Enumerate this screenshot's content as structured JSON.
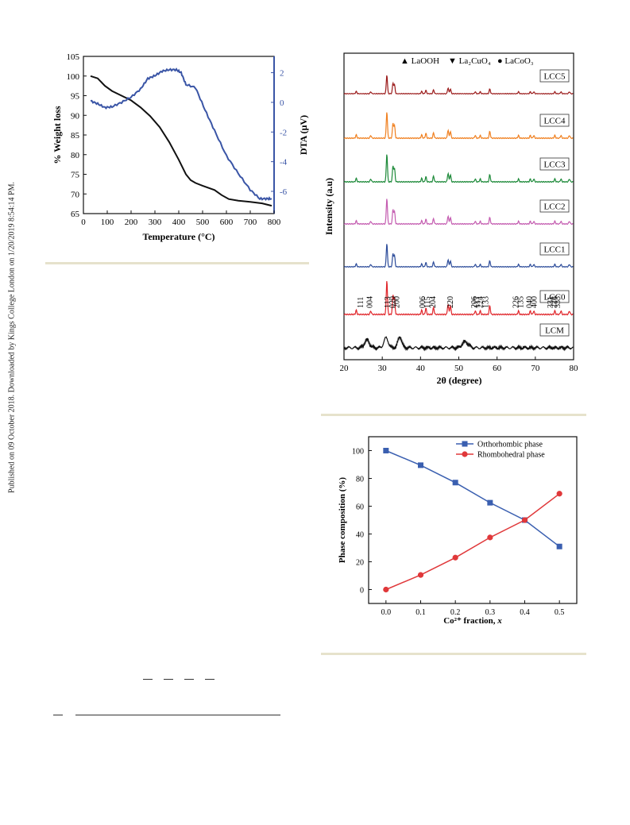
{
  "sidebar": "Published on 09 October 2018. Downloaded by Kings College London on 1/20/2019 8:54:14 PM.",
  "colors": {
    "weight_loss": "#111111",
    "dta": "#3a55a6",
    "LCC5": "#9b1b1b",
    "LCC4": "#f08020",
    "LCC3": "#1e8a3a",
    "LCC2": "#c45cb0",
    "LCC1": "#2c4c9a",
    "LCC0": "#e0252a",
    "LCM": "#111111",
    "orthorhombic": "#3a5fb0",
    "rhombohedral": "#e0383a",
    "rule": "#e6e2cc"
  },
  "chart_data": [
    {
      "type": "line",
      "xlabel": "Temperature (°C)",
      "ylabel": "% Weight loss",
      "y2label": "DTA (μV)",
      "xlim": [
        0,
        800
      ],
      "ylim": [
        65,
        105
      ],
      "y2lim": [
        -7.5,
        3.1
      ],
      "xticks": [
        "0",
        "100",
        "200",
        "300",
        "400",
        "500",
        "600",
        "700",
        "800"
      ],
      "yticks": [
        "65",
        "70",
        "75",
        "80",
        "85",
        "90",
        "95",
        "100",
        "105"
      ],
      "y2ticks": [
        "2",
        "0",
        "-2",
        "-4",
        "-6"
      ],
      "series": [
        {
          "axis": "left",
          "x": [
            30,
            60,
            90,
            120,
            160,
            200,
            240,
            280,
            320,
            360,
            400,
            430,
            450,
            470,
            500,
            550,
            580,
            610,
            650,
            700,
            750,
            790
          ],
          "y": [
            100.0,
            99.4,
            97.5,
            96.2,
            95.0,
            93.8,
            92.0,
            89.8,
            87.0,
            83.2,
            78.7,
            75.0,
            73.5,
            72.8,
            72.1,
            71.0,
            69.7,
            68.7,
            68.3,
            68.0,
            67.6,
            67.0
          ]
        },
        {
          "axis": "right",
          "x": [
            30,
            60,
            90,
            120,
            160,
            200,
            240,
            270,
            300,
            330,
            360,
            390,
            410,
            430,
            470,
            510,
            550,
            600,
            650,
            700,
            740,
            770,
            790
          ],
          "y": [
            0.1,
            -0.1,
            -0.35,
            -0.3,
            0.0,
            0.35,
            0.9,
            1.6,
            1.8,
            2.1,
            2.2,
            2.2,
            2.0,
            1.2,
            1.0,
            -0.5,
            -1.9,
            -3.6,
            -4.8,
            -5.9,
            -6.5,
            -6.5,
            -6.5
          ]
        }
      ]
    },
    {
      "type": "line",
      "xlabel": "2θ (degree)",
      "ylabel": "Intensity (a.u)",
      "xlim": [
        20,
        80
      ],
      "xticks": [
        "20",
        "30",
        "40",
        "50",
        "60",
        "70",
        "80"
      ],
      "legend": [
        "▲ LaOOH",
        "▼ La₂CuO₄",
        "● LaCoO₃"
      ],
      "series_names": [
        "LCC5",
        "LCC4",
        "LCC3",
        "LCC2",
        "LCC1",
        "LCC0",
        "LCM"
      ],
      "peaks_2theta": [
        23.2,
        27.0,
        31.2,
        32.8,
        33.2,
        40.3,
        41.4,
        43.4,
        47.2,
        47.8,
        54.3,
        55.6,
        58.1,
        65.6,
        68.7,
        69.6,
        75.1,
        76.7,
        78.9
      ],
      "hkl_labels": [
        "111",
        "004",
        "113",
        "020",
        "200",
        "006",
        "115",
        "204",
        "220",
        "206",
        "117",
        "224",
        "133",
        "226",
        "135",
        "040",
        "400",
        "331",
        "228",
        "333"
      ],
      "hkl_2theta": [
        24.2,
        26.5,
        31.2,
        32.6,
        33.6,
        40.3,
        41.6,
        43.0,
        47.6,
        53.8,
        54.6,
        55.4,
        56.9,
        64.7,
        66.0,
        68.3,
        69.5,
        73.8,
        74.7,
        75.6
      ]
    },
    {
      "type": "line",
      "xlabel": "Co²⁺ fraction, x",
      "ylabel": "Phase composition (%)",
      "xlim": [
        -0.05,
        0.55
      ],
      "ylim": [
        -10,
        110
      ],
      "xticks": [
        "0.0",
        "0.1",
        "0.2",
        "0.3",
        "0.4",
        "0.5"
      ],
      "yticks": [
        "0",
        "20",
        "40",
        "60",
        "80",
        "100"
      ],
      "x": [
        0.0,
        0.1,
        0.2,
        0.3,
        0.4,
        0.5
      ],
      "series": [
        {
          "name": "Orthorhombic phase",
          "values": [
            100,
            89.5,
            77,
            62.5,
            50,
            31
          ]
        },
        {
          "name": "Rhombohedral phase",
          "values": [
            0,
            10.5,
            23,
            37.5,
            50,
            69
          ]
        }
      ]
    }
  ]
}
